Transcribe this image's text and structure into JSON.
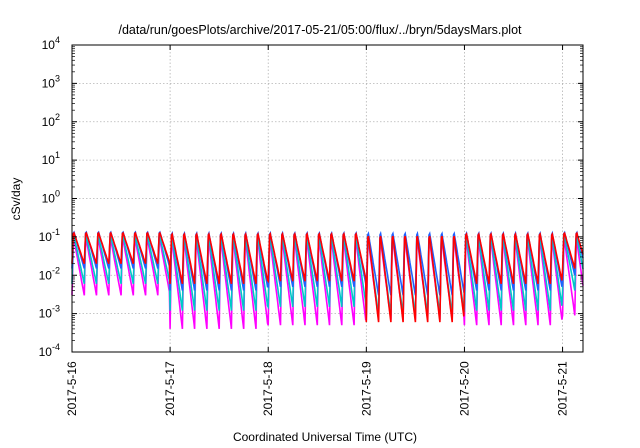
{
  "chart_data": {
    "type": "line",
    "title": "/data/run/goesPlots/archive/2017-05-21/05:00/flux/../bryn/5daysMars.plot",
    "xlabel": "Coordinated Universal Time (UTC)",
    "ylabel": "cSv/day",
    "y_scale": "log",
    "ylim": [
      0.0001,
      10000
    ],
    "y_ticks": [
      {
        "value": 0.0001,
        "base": "10",
        "exp": "-4"
      },
      {
        "value": 0.001,
        "base": "10",
        "exp": "-3"
      },
      {
        "value": 0.01,
        "base": "10",
        "exp": "-2"
      },
      {
        "value": 0.1,
        "base": "10",
        "exp": "-1"
      },
      {
        "value": 1,
        "base": "10",
        "exp": "0"
      },
      {
        "value": 10,
        "base": "10",
        "exp": "1"
      },
      {
        "value": 100,
        "base": "10",
        "exp": "2"
      },
      {
        "value": 1000,
        "base": "10",
        "exp": "3"
      },
      {
        "value": 10000,
        "base": "10",
        "exp": "4"
      }
    ],
    "xlim": [
      "2017-05-16 00:00",
      "2017-05-21 05:00"
    ],
    "x_ticks": [
      {
        "value": "2017-05-16 00:00",
        "label": "2017-5-16"
      },
      {
        "value": "2017-05-17 00:00",
        "label": "2017-5-17"
      },
      {
        "value": "2017-05-18 00:00",
        "label": "2017-5-18"
      },
      {
        "value": "2017-05-19 00:00",
        "label": "2017-5-19"
      },
      {
        "value": "2017-05-20 00:00",
        "label": "2017-5-20"
      },
      {
        "value": "2017-05-21 00:00",
        "label": "2017-5-21"
      }
    ],
    "grid": true,
    "series": [
      {
        "color": "#ff00ff",
        "min_values": [
          0.003,
          0.0004,
          0.0005,
          0.0007,
          0.0005,
          0.0009
        ],
        "peak": 0.1
      },
      {
        "color": "#00c8c8",
        "min_values": [
          0.006,
          0.0012,
          0.0015,
          0.0009,
          0.0012,
          0.004
        ],
        "peak": 0.12
      },
      {
        "color": "#2060ff",
        "min_values": [
          0.015,
          0.004,
          0.005,
          0.003,
          0.004,
          0.01
        ],
        "peak": 0.15
      },
      {
        "color": "#ff0000",
        "min_values": [
          0.02,
          0.006,
          0.007,
          0.0006,
          0.006,
          0.015
        ],
        "peak": 0.14
      }
    ],
    "pulse_period_hours": 3
  }
}
